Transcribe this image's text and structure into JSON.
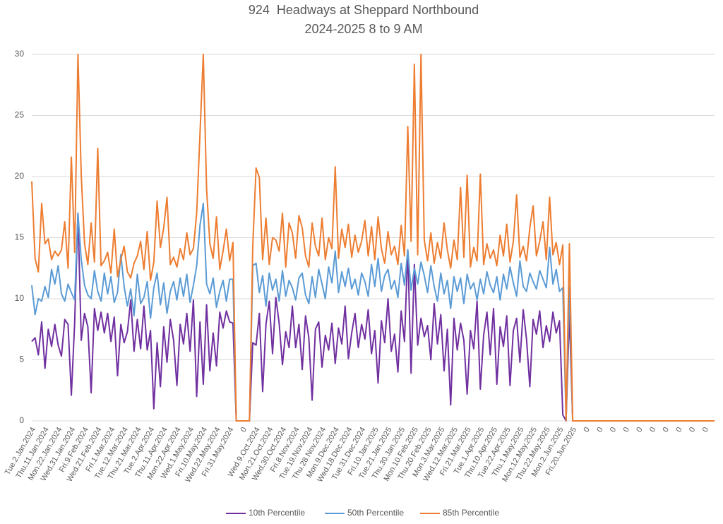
{
  "chart_data": {
    "type": "line",
    "title": "924  Headways at Sheppard Northbound",
    "subtitle": "2024-2025 8 to 9 AM",
    "categories": [
      "Tue.2.Jan.2024",
      null,
      null,
      null,
      "Thu.11.Jan.2024",
      null,
      null,
      null,
      "Mon.22.Jan.2024",
      null,
      null,
      null,
      "Wed.31.Jan.2024",
      null,
      null,
      null,
      "Fri.9.Feb.2024",
      null,
      null,
      null,
      "Wed.21.Feb.2024",
      null,
      null,
      null,
      "Fri.1.Mar.2024",
      null,
      null,
      null,
      "Tue.12.Mar.2024",
      null,
      null,
      null,
      "Thu.21.Mar.2024",
      null,
      null,
      null,
      "Tue.2.Apr.2024",
      null,
      null,
      null,
      "Thu.11.Apr.2024",
      null,
      null,
      null,
      "Mon.22.Apr.2024",
      null,
      null,
      null,
      "Wed.1.May.2024",
      null,
      null,
      null,
      "Fri.10.May.2024",
      null,
      null,
      null,
      "Wed.22.May.2024",
      null,
      null,
      null,
      "Fri.31.May.2024",
      null,
      null,
      null,
      "0",
      null,
      null,
      null,
      "Wed.9.Oct.2024",
      null,
      null,
      null,
      "Mon.21.Oct.2024",
      null,
      null,
      null,
      "Wed.30.Oct.2024",
      null,
      null,
      null,
      "Fri.8.Nov.2024",
      null,
      null,
      null,
      "Tue.19.Nov.2024",
      null,
      null,
      null,
      "Thu.28.Nov.2024",
      null,
      null,
      null,
      "Mon.9.Dec.2024",
      null,
      null,
      null,
      "Wed.18.Dec.2024",
      null,
      null,
      null,
      "Tue.31.Dec.2024",
      null,
      null,
      null,
      "Fri.10.Jan.2025",
      null,
      null,
      null,
      "Tue.21.Jan.2025",
      null,
      null,
      null,
      "Thu.30.Jan.2025",
      null,
      null,
      null,
      "Mon.10.Feb.2025",
      null,
      null,
      null,
      "Thu.20.Feb.2025",
      null,
      null,
      null,
      "Mon.3.Mar.2025",
      null,
      null,
      null,
      "Wed.12.Mar.2025",
      null,
      null,
      null,
      "Fri.21.Mar.2025",
      null,
      null,
      null,
      "Tue.1.Apr.2025",
      null,
      null,
      null,
      "Thu.10.Apr.2025",
      null,
      null,
      null,
      "Tue.22.Apr.2025",
      null,
      null,
      null,
      "Thu.1.May.2025",
      null,
      null,
      null,
      "Mon.12.May.2025",
      null,
      null,
      null,
      "Thu.22.May.2025",
      null,
      null,
      null,
      "Mon.2.Jun.2025",
      null,
      null,
      null,
      "Fri.20.Jun.2025",
      null,
      null,
      null,
      "0",
      null,
      null,
      null,
      "0",
      null,
      null,
      null,
      "0",
      null,
      null,
      null,
      "0",
      null,
      null,
      null,
      "0",
      null,
      null,
      null,
      "0",
      null,
      null,
      null,
      "0",
      null,
      null,
      null,
      "0",
      null,
      null,
      null,
      "0",
      null,
      null,
      null,
      "0",
      null,
      null,
      null
    ],
    "series": [
      {
        "name": "10th Percentile",
        "color": "#7030a0",
        "values": [
          6.5,
          6.8,
          5.4,
          8.1,
          4.3,
          7.5,
          6.1,
          7.9,
          6.2,
          5.3,
          8.3,
          7.9,
          2.1,
          8.0,
          17.0,
          6.6,
          8.8,
          7.7,
          2.3,
          9.2,
          7.4,
          8.9,
          7.2,
          8.8,
          6.5,
          8.5,
          3.7,
          7.9,
          6.4,
          7.3,
          9.9,
          5.7,
          8.3,
          5.9,
          9.4,
          5.8,
          7.4,
          1.0,
          6.4,
          2.8,
          7.7,
          4.8,
          8.3,
          6.6,
          2.9,
          7.9,
          6.3,
          8.8,
          5.7,
          9.9,
          2.0,
          8.1,
          3.0,
          9.5,
          4.1,
          7.2,
          4.5,
          8.9,
          7.6,
          9.0,
          8.1,
          8.0,
          0,
          0,
          0,
          0,
          0,
          6.4,
          6.2,
          8.8,
          2.4,
          7.9,
          9.8,
          5.5,
          10.1,
          8.0,
          4.6,
          7.3,
          6.0,
          9.4,
          6.0,
          7.9,
          4.2,
          8.6,
          6.8,
          1.7,
          7.5,
          8.1,
          4.4,
          7.0,
          5.8,
          8.0,
          4.7,
          7.6,
          6.3,
          9.4,
          5.1,
          7.2,
          8.8,
          6.0,
          7.9,
          6.7,
          9.1,
          5.5,
          7.4,
          3.1,
          8.2,
          6.4,
          10.0,
          5.7,
          7.1,
          4.0,
          9.0,
          6.5,
          14.0,
          3.9,
          12.8,
          6.2,
          8.4,
          6.9,
          7.8,
          5.0,
          9.6,
          6.3,
          8.7,
          4.1,
          7.5,
          1.3,
          8.4,
          5.8,
          8.0,
          6.6,
          2.2,
          7.4,
          5.9,
          9.8,
          2.6,
          7.0,
          8.9,
          5.4,
          9.2,
          3.0,
          7.7,
          6.1,
          8.6,
          2.9,
          7.4,
          8.4,
          4.8,
          9.1,
          6.7,
          2.8,
          8.3,
          7.1,
          9.0,
          6.0,
          7.8,
          6.5,
          8.9,
          7.2,
          8.2,
          0.5,
          0,
          8.8,
          0,
          0,
          0,
          0,
          0,
          0,
          0,
          0,
          0,
          0,
          0,
          0,
          0,
          0,
          0,
          0,
          0,
          0,
          0,
          0,
          0,
          0,
          0,
          0,
          0,
          0,
          0,
          0,
          0,
          0,
          0,
          0,
          0,
          0,
          0,
          0,
          0,
          0,
          0,
          0,
          0,
          0,
          0,
          0
        ]
      },
      {
        "name": "50th Percentile",
        "color": "#5b9bd5",
        "values": [
          11.1,
          8.7,
          10.0,
          9.8,
          11.0,
          10.1,
          12.4,
          11.2,
          12.7,
          10.4,
          9.8,
          11.2,
          10.5,
          9.9,
          17.0,
          13.2,
          11.1,
          10.3,
          10.0,
          12.3,
          10.6,
          9.8,
          12.1,
          10.4,
          11.8,
          9.7,
          10.5,
          13.6,
          11.0,
          9.4,
          10.8,
          8.6,
          12.0,
          9.6,
          10.1,
          11.4,
          8.4,
          10.9,
          12.1,
          9.5,
          11.3,
          8.8,
          10.6,
          11.4,
          9.9,
          11.7,
          10.2,
          12.0,
          9.7,
          11.1,
          12.7,
          16.0,
          17.8,
          11.2,
          10.4,
          11.7,
          9.3,
          10.6,
          11.5,
          9.8,
          11.6,
          11.6,
          0,
          0,
          0,
          0,
          0,
          12.7,
          12.9,
          10.5,
          11.9,
          9.4,
          12.1,
          10.7,
          11.6,
          9.8,
          12.3,
          10.2,
          11.5,
          10.9,
          9.9,
          11.7,
          12.1,
          10.3,
          9.6,
          11.8,
          10.1,
          12.4,
          11.2,
          10.0,
          12.6,
          11.3,
          13.9,
          10.5,
          12.2,
          11.0,
          12.5,
          10.8,
          11.6,
          10.3,
          12.1,
          11.4,
          10.2,
          12.8,
          11.0,
          13.3,
          10.6,
          11.9,
          12.4,
          10.8,
          11.5,
          10.1,
          12.9,
          11.1,
          14.0,
          10.7,
          12.5,
          11.2,
          13.0,
          11.9,
          10.5,
          12.7,
          11.0,
          9.8,
          12.1,
          10.4,
          11.5,
          9.2,
          11.8,
          10.6,
          11.7,
          9.6,
          12.0,
          10.8,
          11.3,
          9.9,
          11.6,
          10.4,
          12.2,
          11.1,
          10.5,
          11.8,
          9.9,
          12.0,
          10.8,
          12.6,
          11.3,
          10.2,
          13.1,
          11.0,
          10.6,
          12.1,
          11.4,
          10.8,
          12.3,
          11.6,
          10.9,
          14.2,
          11.2,
          12.4,
          10.6,
          10.9,
          0,
          11.0,
          0,
          0,
          0,
          0,
          0,
          0,
          0,
          0,
          0,
          0,
          0,
          0,
          0,
          0,
          0,
          0,
          0,
          0,
          0,
          0,
          0,
          0,
          0,
          0,
          0,
          0,
          0,
          0,
          0,
          0,
          0,
          0,
          0,
          0,
          0,
          0,
          0,
          0,
          0,
          0,
          0,
          0,
          0,
          0
        ]
      },
      {
        "name": "85th Percentile",
        "color": "#ed7d31",
        "values": [
          19.6,
          13.3,
          12.2,
          17.8,
          14.5,
          14.9,
          13.2,
          13.9,
          13.5,
          14.0,
          16.3,
          12.5,
          21.6,
          13.8,
          30,
          20.1,
          14.5,
          12.8,
          16.2,
          13.0,
          22.3,
          12.7,
          13.1,
          13.8,
          12.1,
          15.7,
          11.8,
          13.2,
          14.3,
          12.2,
          11.7,
          12.9,
          13.5,
          14.7,
          12.4,
          15.5,
          11.5,
          13.0,
          18.0,
          14.2,
          15.8,
          18.3,
          12.8,
          13.4,
          12.6,
          14.1,
          13.2,
          15.4,
          13.6,
          14.1,
          17.0,
          23.5,
          30,
          19.0,
          14.5,
          13.3,
          16.7,
          12.4,
          13.9,
          15.7,
          13.1,
          14.6,
          0,
          0,
          0,
          0,
          0,
          14.3,
          20.7,
          19.9,
          13.2,
          16.6,
          12.8,
          15.0,
          14.8,
          13.9,
          17.0,
          12.6,
          16.2,
          15.4,
          13.3,
          16.8,
          15.8,
          13.5,
          12.6,
          16.2,
          14.3,
          13.5,
          16.6,
          13.2,
          15.0,
          14.1,
          20.8,
          13.3,
          15.7,
          14.2,
          16.1,
          13.4,
          15.2,
          13.8,
          14.7,
          16.4,
          13.5,
          15.9,
          13.2,
          16.7,
          14.1,
          12.9,
          15.5,
          13.6,
          14.3,
          12.8,
          16.0,
          13.5,
          24.1,
          14.7,
          29.2,
          13.6,
          30,
          14.8,
          13.1,
          15.4,
          12.9,
          14.6,
          13.3,
          16.2,
          14.0,
          12.5,
          14.8,
          13.2,
          19.1,
          13.4,
          20.1,
          12.6,
          14.2,
          13.1,
          20.2,
          12.8,
          14.5,
          13.3,
          14.0,
          12.7,
          15.2,
          13.5,
          16.1,
          13.0,
          14.7,
          18.5,
          13.4,
          14.3,
          13.1,
          15.8,
          17.6,
          13.5,
          14.7,
          16.3,
          13.2,
          18.3,
          13.6,
          14.6,
          12.8,
          14.4,
          0,
          14.5,
          0,
          0,
          0,
          0,
          0,
          0,
          0,
          0,
          0,
          0,
          0,
          0,
          0,
          0,
          0,
          0,
          0,
          0,
          0,
          0,
          0,
          0,
          0,
          0,
          0,
          0,
          0,
          0,
          0,
          0,
          0,
          0,
          0,
          0,
          0,
          0,
          0,
          0,
          0,
          0,
          0,
          0,
          0,
          0
        ]
      }
    ],
    "ylim": [
      0,
      30
    ],
    "yticks": [
      0,
      5,
      10,
      15,
      20,
      25,
      30
    ],
    "grid": true,
    "legend": "bottom"
  }
}
